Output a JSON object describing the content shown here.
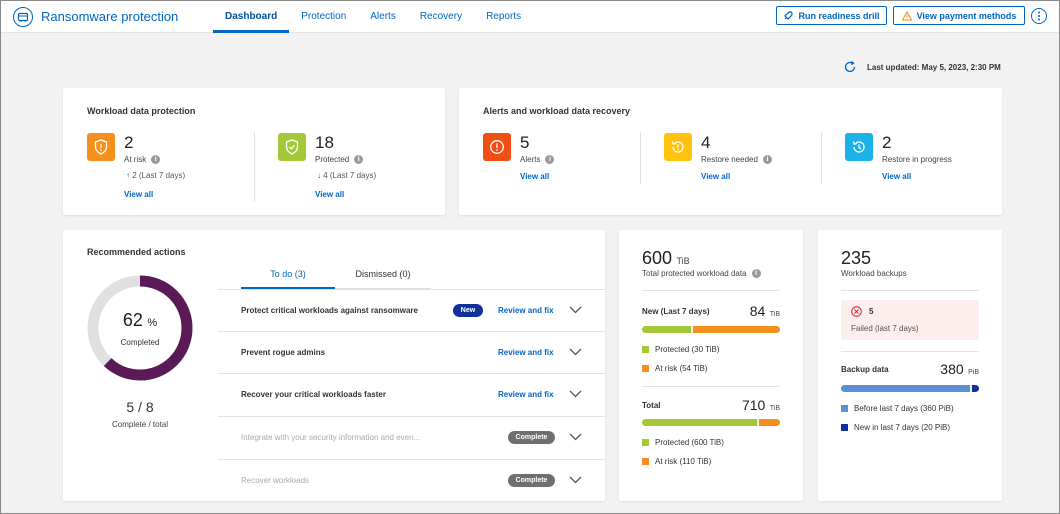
{
  "app": {
    "title": "Ransomware protection"
  },
  "nav": {
    "tabs": [
      {
        "label": "Dashboard"
      },
      {
        "label": "Protection"
      },
      {
        "label": "Alerts"
      },
      {
        "label": "Recovery"
      },
      {
        "label": "Reports"
      }
    ]
  },
  "actions": {
    "drill": "Run readiness drill",
    "payment": "View payment methods"
  },
  "last_updated": "Last updated: May 5, 2023, 2:30 PM",
  "workload": {
    "title": "Workload data protection",
    "at_risk": {
      "value": "2",
      "label": "At risk",
      "trend": "2 (Last 7 days)",
      "link": "View all"
    },
    "protected": {
      "value": "18",
      "label": "Protected",
      "trend": "4 (Last 7 days)",
      "link": "View all"
    }
  },
  "alerts_card": {
    "title": "Alerts and workload data recovery",
    "alerts": {
      "value": "5",
      "label": "Alerts",
      "link": "View all"
    },
    "restore_needed": {
      "value": "4",
      "label": "Restore needed",
      "link": "View all"
    },
    "restore_progress": {
      "value": "2",
      "label": "Restore in progress",
      "link": "View all"
    }
  },
  "recommended": {
    "title": "Recommended actions",
    "percent": "62",
    "percent_unit": "%",
    "percent_value": 0.62,
    "donut_label": "Completed",
    "complete_count": "5 / 8",
    "complete_label": "Complete / total",
    "tab_todo": "To do (3)",
    "tab_dismissed": "Dismissed (0)",
    "rows": [
      {
        "text": "Protect critical workloads against ransomware",
        "badge": "New",
        "link": "Review and fix"
      },
      {
        "text": "Prevent rogue admins",
        "link": "Review and fix"
      },
      {
        "text": "Recover your critical workloads faster",
        "link": "Review and fix"
      },
      {
        "text": "Integrate with your security information and even...",
        "status": "Complete"
      },
      {
        "text": "Recover workloads",
        "status": "Complete"
      }
    ]
  },
  "totals": {
    "value": "600",
    "unit": "TiB",
    "label": "Total protected workload data",
    "new_label": "New (Last 7 days)",
    "new_value": "84",
    "new_unit": "TiB",
    "new_protected": "Protected (30 TiB)",
    "new_risk": "At risk (54 TiB)",
    "new_protected_val": 30,
    "new_risk_val": 54,
    "total_label": "Total",
    "total_value": "710",
    "total_unit": "TiB",
    "total_protected": "Protected (600 TiB)",
    "total_risk": "At risk (110 TiB)",
    "total_protected_val": 600,
    "total_risk_val": 110
  },
  "backups": {
    "value": "235",
    "label": "Workload backups",
    "failed_value": "5",
    "failed_label": "Failed (last 7 days)",
    "data_label": "Backup data",
    "data_value": "380",
    "data_unit": "PiB",
    "before": "Before last 7 days (360 PiB)",
    "new": "New in last 7 days (20 PiB)",
    "before_val": 360,
    "new_val": 20
  },
  "colors": {
    "accent": "#0067c5",
    "orange": "#f5901e",
    "green": "#a4c639",
    "red": "#f04e13",
    "yellow": "#ffc20e",
    "cyan": "#1ab2e8",
    "donut": "#5a1a55",
    "navy": "#10309a",
    "lightblue": "#5b8fd6"
  }
}
